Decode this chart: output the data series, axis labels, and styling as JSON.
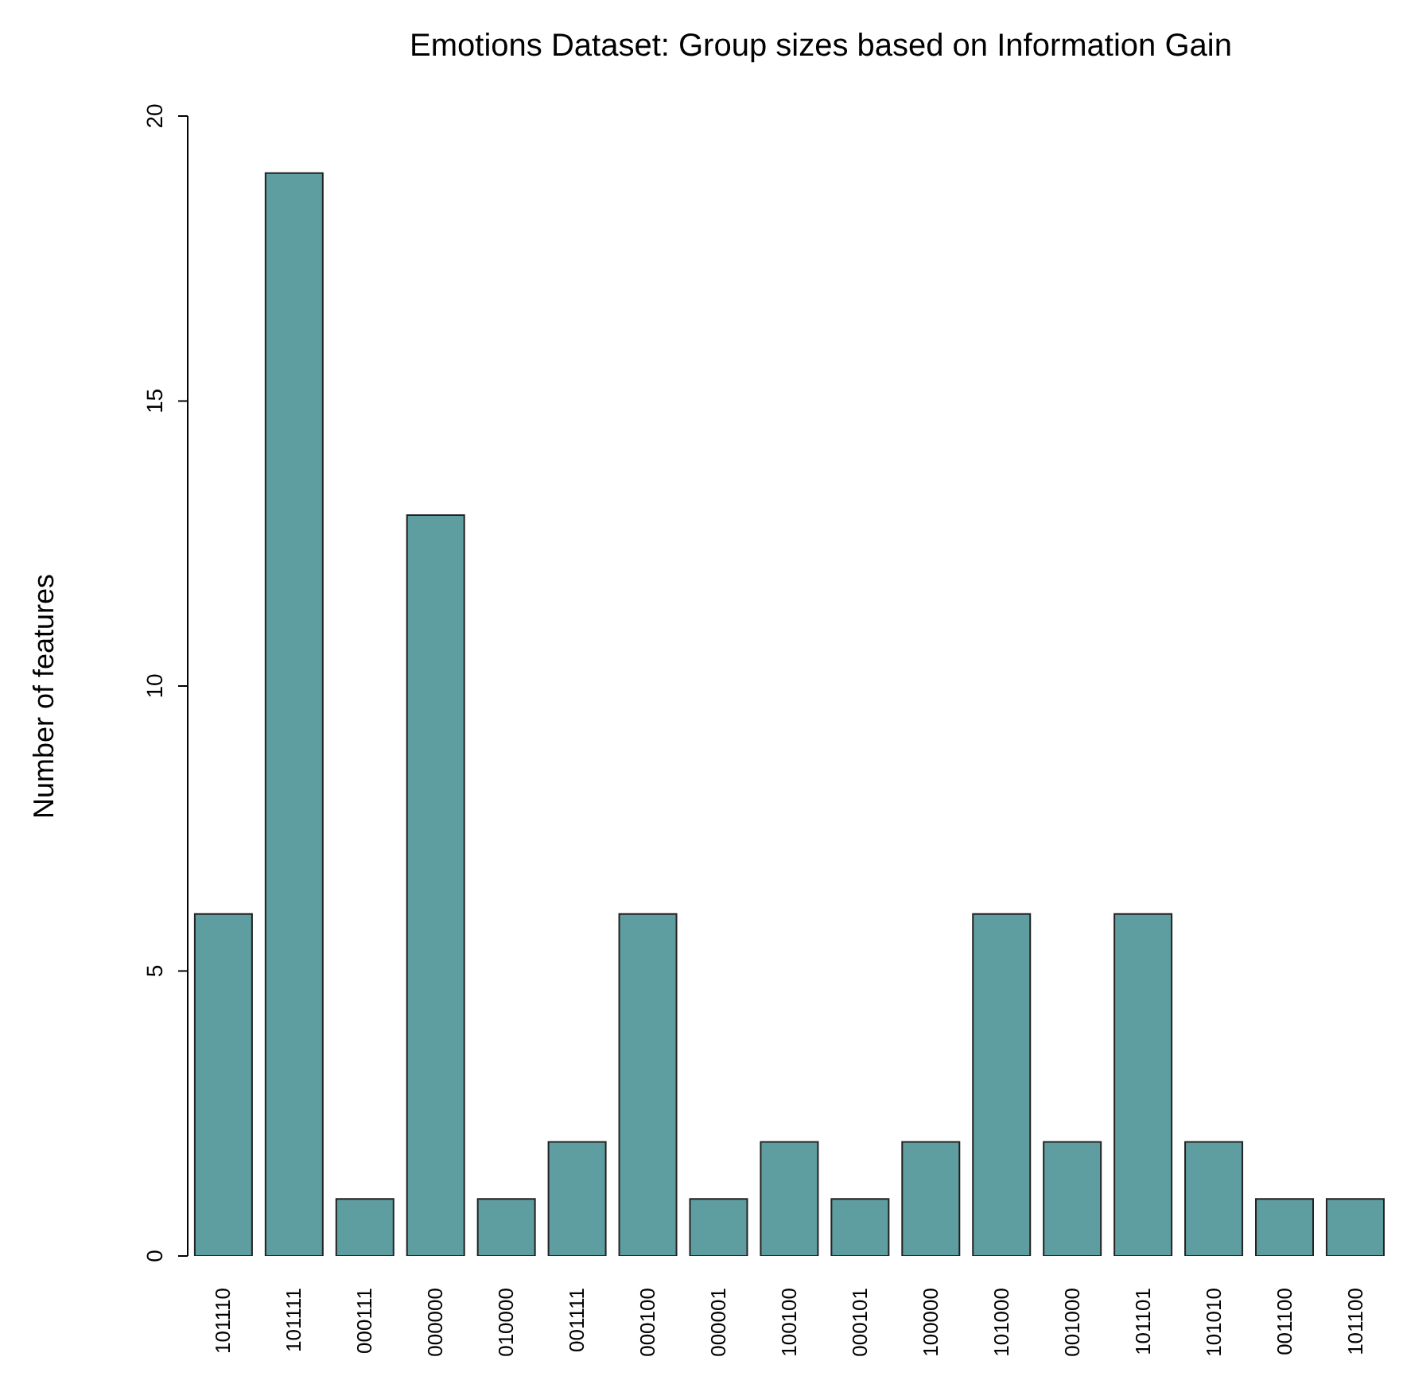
{
  "chart_data": {
    "type": "bar",
    "title": "Emotions Dataset: Group sizes based on Information Gain",
    "ylabel": "Number of features",
    "categories": [
      "101110",
      "101111",
      "000111",
      "000000",
      "010000",
      "001111",
      "000100",
      "000001",
      "100100",
      "000101",
      "100000",
      "101000",
      "001000",
      "101101",
      "101010",
      "001100",
      "101100"
    ],
    "values": [
      6,
      19,
      1,
      13,
      1,
      2,
      6,
      1,
      2,
      1,
      2,
      6,
      2,
      6,
      2,
      1,
      1
    ],
    "color": "#5f9ea0",
    "ylim": [
      0,
      20
    ],
    "yticks": [
      0,
      5,
      10,
      15,
      20
    ],
    "grid": false,
    "legend": false
  }
}
